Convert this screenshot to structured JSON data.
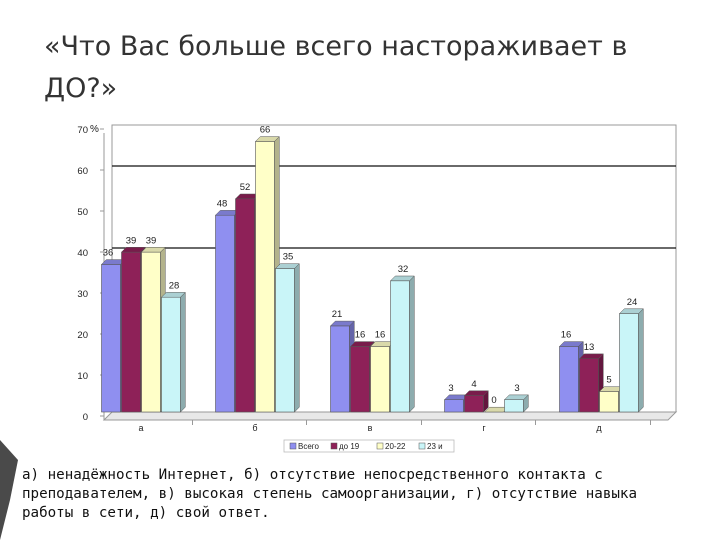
{
  "title": "«Что Вас больше всего настораживает в ДО?»",
  "caption": {
    "line1": " а) ненадёжность Интернет, б) отсутствие непосредственного контакта с",
    "line2": "преподавателем, в) высокая степень самоорганизации, г) отсутствие навыка",
    "line3": "работы в сети, д) свой ответ."
  },
  "chart_data": {
    "type": "bar",
    "unit_label": "%",
    "categories": [
      "а",
      "б",
      "в",
      "г",
      "д"
    ],
    "series": [
      {
        "name": "Всего",
        "values": [
          36,
          48,
          21,
          3,
          16
        ],
        "color": "#8f8ff0"
      },
      {
        "name": "до 19",
        "values": [
          39,
          52,
          16,
          4,
          13
        ],
        "color": "#8e2158"
      },
      {
        "name": "20-22",
        "values": [
          39,
          66,
          16,
          0,
          5
        ],
        "color": "#ffffc8"
      },
      {
        "name": "23 и",
        "values": [
          28,
          35,
          32,
          3,
          24
        ],
        "color": "#c9f5f8"
      }
    ],
    "ylim": [
      0,
      70
    ],
    "yticks": [
      0,
      10,
      20,
      30,
      40,
      50,
      60,
      70
    ],
    "gridlines": [
      40,
      60
    ],
    "legend_position": "bottom"
  }
}
